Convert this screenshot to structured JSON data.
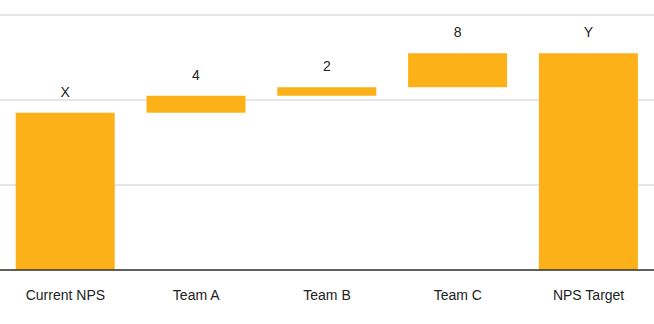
{
  "chart_data": {
    "type": "waterfall",
    "categories": [
      "Current NPS",
      "Team A",
      "Team B",
      "Team C",
      "NPS Target"
    ],
    "values": [
      37,
      4,
      2,
      8,
      51
    ],
    "value_labels": [
      "X",
      "4",
      "2",
      "8",
      "Y"
    ],
    "data_labels": true,
    "color": "#fbb117",
    "ylim": [
      0,
      60
    ],
    "yticks": [
      0,
      20,
      40,
      60
    ],
    "grid": true,
    "tick_labels": "x"
  }
}
